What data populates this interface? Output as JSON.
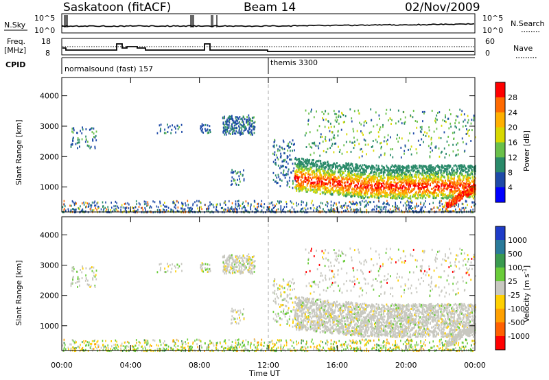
{
  "header": {
    "station": "Saskatoon (fitACF)",
    "beam": "Beam 14",
    "date": "02/Nov/2009"
  },
  "summary_panels": {
    "nsky_label": "N.Sky",
    "nsky_ticks": [
      "10^5",
      "10^0"
    ],
    "nsearch_label": "N.Search",
    "nsearch_ticks": [
      "10^5",
      "10^0"
    ],
    "freq_label_line1": "Freq.",
    "freq_label_line2": "[MHz]",
    "freq_ticks": [
      "18",
      "8"
    ],
    "nave_label": "Nave",
    "nave_ticks": [
      "60",
      "0"
    ],
    "cpid_label": "CPID",
    "cpid_segments": [
      {
        "label": "normalsound (fast) 157",
        "start_hour": 0
      },
      {
        "label": "themis 3300",
        "start_hour": 12
      }
    ]
  },
  "axes": {
    "x_ticks": [
      "00:00",
      "04:00",
      "08:00",
      "12:00",
      "16:00",
      "20:00",
      "00:00"
    ],
    "xlabel": "Time UT",
    "ylabel": "Slant Range [km]",
    "y_ticks": [
      "4000",
      "3000",
      "2000",
      "1000"
    ]
  },
  "colorbars": {
    "power": {
      "label": "Power [dB]",
      "ticks": [
        "28",
        "24",
        "20",
        "16",
        "12",
        "8",
        "4"
      ],
      "colors": [
        "#ff0000",
        "#ff6a00",
        "#ffb000",
        "#d8d800",
        "#6ac04a",
        "#2a8a6a",
        "#1e4aa8",
        "#0000ff"
      ]
    },
    "velocity": {
      "label_prefix": "Velocity [m s",
      "label_sup": "-1",
      "label_suffix": "]",
      "ticks": [
        "1000",
        "500",
        "100",
        "25",
        "-25",
        "-100",
        "-500",
        "-1000"
      ],
      "colors": [
        "#1e3cc8",
        "#2a7a9a",
        "#3a9a50",
        "#6acc3a",
        "#c8c8c0",
        "#ffd000",
        "#ffa000",
        "#ff6000",
        "#ff0000"
      ]
    }
  },
  "chart_data": {
    "type": "heatmap",
    "title": "Saskatoon (fitACF)",
    "xlabel": "Time UT",
    "ylabel": "Slant Range [km]",
    "xlim_hours": [
      0,
      24
    ],
    "ylim_km": [
      180,
      4600
    ],
    "regions": [
      {
        "name": "near-range ground scatter",
        "t0": 0,
        "t1": 24,
        "r0": 200,
        "r1": 500
      },
      {
        "name": "far-range patches 00-02 UT",
        "t0": 0.5,
        "t1": 2.0,
        "r0": 2200,
        "r1": 3000
      },
      {
        "name": "evening patch 09-11 UT",
        "t0": 9.3,
        "t1": 11.2,
        "r0": 2750,
        "r1": 3400
      },
      {
        "name": "main scatter band",
        "t0": 13.5,
        "t1": 24,
        "r0": 800,
        "r1": 2100,
        "peak_power_db": 28
      },
      {
        "name": "late upper band",
        "t0": 14,
        "t1": 24,
        "r0": 2800,
        "r1": 3500
      }
    ],
    "nave": 1,
    "dashed_marker_hour": 12
  }
}
